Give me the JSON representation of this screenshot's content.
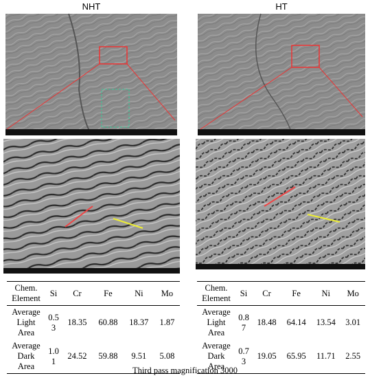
{
  "panels": [
    {
      "label": "NHT"
    },
    {
      "label": "HT"
    }
  ],
  "tables": [
    {
      "header": [
        "Chem. Element",
        "Si",
        "Cr",
        "Fe",
        "Ni",
        "Mo"
      ],
      "rows": [
        [
          "Average Light Area",
          0.53,
          18.35,
          60.88,
          18.37,
          1.87
        ],
        [
          "Average Dark Area",
          1.01,
          24.52,
          59.88,
          9.51,
          5.08
        ]
      ]
    },
    {
      "header": [
        "Chem. Element",
        "Si",
        "Cr",
        "Fe",
        "Ni",
        "Mo"
      ],
      "rows": [
        [
          "Average Light Area",
          0.87,
          18.48,
          64.14,
          13.54,
          3.01
        ],
        [
          "Average Dark Area",
          0.73,
          19.05,
          65.95,
          11.71,
          2.55
        ]
      ]
    }
  ],
  "caption": "Third pass magnification 3000"
}
